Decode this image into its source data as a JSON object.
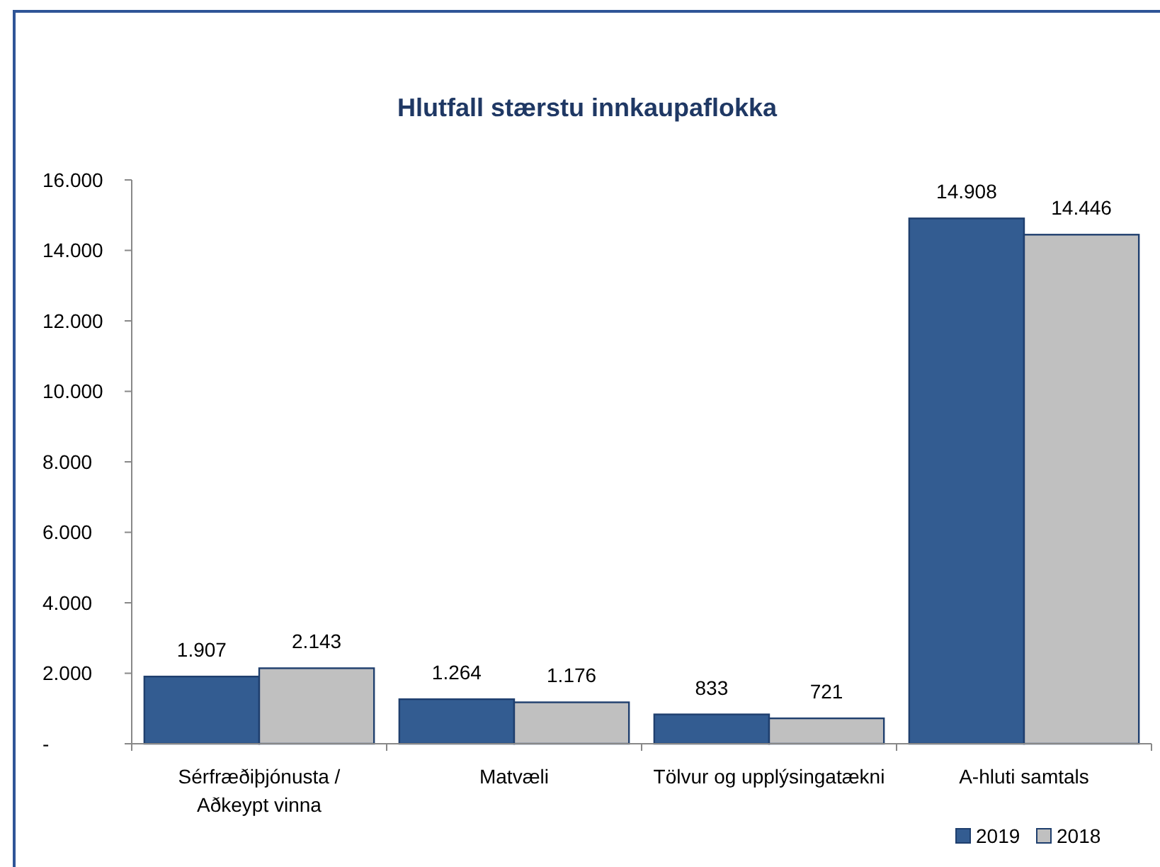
{
  "chart_data": {
    "type": "bar",
    "title": "Hlutfall stærstu innkaupaflokka",
    "categories": [
      "Sérfræðiþjónusta / Aðkeypt vinna",
      "Matvæli",
      "Tölvur og upplýsingatækni",
      "A-hluti samtals"
    ],
    "series": [
      {
        "name": "2019",
        "color": "#335c91",
        "values": [
          1907,
          1264,
          833,
          14908
        ],
        "value_labels": [
          "1.907",
          "1.264",
          "833",
          "14.908"
        ]
      },
      {
        "name": "2018",
        "color": "#c0c0c0",
        "values": [
          2143,
          1176,
          721,
          14446
        ],
        "value_labels": [
          "2.143",
          "1.176",
          "721",
          "14.446"
        ]
      }
    ],
    "ylim": [
      0,
      16000
    ],
    "yticks": [
      {
        "value": 0,
        "label": "-"
      },
      {
        "value": 2000,
        "label": "2.000"
      },
      {
        "value": 4000,
        "label": "4.000"
      },
      {
        "value": 6000,
        "label": "6.000"
      },
      {
        "value": 8000,
        "label": "8.000"
      },
      {
        "value": 10000,
        "label": "10.000"
      },
      {
        "value": 12000,
        "label": "12.000"
      },
      {
        "value": 14000,
        "label": "14.000"
      },
      {
        "value": 16000,
        "label": "16.000"
      }
    ],
    "grid": false,
    "legend": "bottom right"
  }
}
